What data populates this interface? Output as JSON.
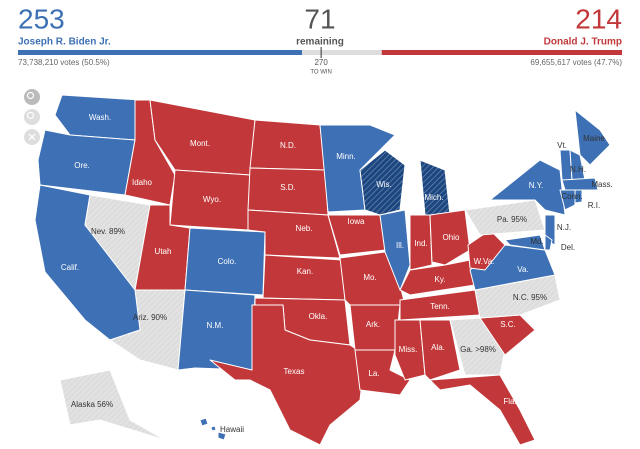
{
  "header": {
    "biden": {
      "electoral_votes": 253,
      "name": "Joseph R. Biden Jr.",
      "popular_votes": "73,738,210 votes (50.5%)",
      "color": "#3d70b5"
    },
    "remaining": {
      "count": 71,
      "label": "remaining",
      "color": "#dddddd"
    },
    "trump": {
      "electoral_votes": 214,
      "name": "Donald J. Trump",
      "popular_votes": "69,655,617 votes (47.7%)",
      "color": "#c2383a"
    },
    "threshold": {
      "value": 270,
      "label": "TO WIN"
    }
  },
  "map": {
    "states": [
      {
        "label": "Wash.",
        "color": "#3d70b5"
      },
      {
        "label": "Ore.",
        "color": "#3d70b5"
      },
      {
        "label": "Calif.",
        "color": "#3d70b5"
      },
      {
        "label": "Nev. 89%",
        "color": "#dddddd",
        "hatched": true
      },
      {
        "label": "Idaho",
        "color": "#c2383a"
      },
      {
        "label": "Mont.",
        "color": "#c2383a"
      },
      {
        "label": "Wyo.",
        "color": "#c2383a"
      },
      {
        "label": "Utah",
        "color": "#c2383a"
      },
      {
        "label": "Colo.",
        "color": "#3d70b5"
      },
      {
        "label": "Ariz. 90%",
        "color": "#dddddd",
        "hatched": true
      },
      {
        "label": "N.M.",
        "color": "#3d70b5"
      },
      {
        "label": "N.D.",
        "color": "#c2383a"
      },
      {
        "label": "S.D.",
        "color": "#c2383a"
      },
      {
        "label": "Neb.",
        "color": "#c2383a"
      },
      {
        "label": "Kan.",
        "color": "#c2383a"
      },
      {
        "label": "Okla.",
        "color": "#c2383a"
      },
      {
        "label": "Texas",
        "color": "#c2383a"
      },
      {
        "label": "Minn.",
        "color": "#3d70b5"
      },
      {
        "label": "Iowa",
        "color": "#c2383a"
      },
      {
        "label": "Mo.",
        "color": "#c2383a"
      },
      {
        "label": "Ark.",
        "color": "#c2383a"
      },
      {
        "label": "La.",
        "color": "#c2383a"
      },
      {
        "label": "Wis.",
        "color": "#1c4680",
        "hatched": true
      },
      {
        "label": "Ill.",
        "color": "#3d70b5"
      },
      {
        "label": "Mich.",
        "color": "#1c4680",
        "hatched": true
      },
      {
        "label": "Ind.",
        "color": "#c2383a"
      },
      {
        "label": "Ohio",
        "color": "#c2383a"
      },
      {
        "label": "Ky.",
        "color": "#c2383a"
      },
      {
        "label": "Tenn.",
        "color": "#c2383a"
      },
      {
        "label": "Miss.",
        "color": "#c2383a"
      },
      {
        "label": "Ala.",
        "color": "#c2383a"
      },
      {
        "label": "Ga. >98%",
        "color": "#dddddd",
        "hatched": true
      },
      {
        "label": "Fla.",
        "color": "#c2383a"
      },
      {
        "label": "S.C.",
        "color": "#c2383a"
      },
      {
        "label": "N.C. 95%",
        "color": "#dddddd",
        "hatched": true
      },
      {
        "label": "Va.",
        "color": "#3d70b5"
      },
      {
        "label": "W.Va.",
        "color": "#c2383a"
      },
      {
        "label": "Pa. 95%",
        "color": "#dddddd",
        "hatched": true
      },
      {
        "label": "N.Y.",
        "color": "#3d70b5"
      },
      {
        "label": "Maine",
        "color": "#3d70b5"
      },
      {
        "label": "Vt.",
        "color": "#3d70b5"
      },
      {
        "label": "N.H.",
        "color": "#3d70b5"
      },
      {
        "label": "Mass.",
        "color": "#3d70b5"
      },
      {
        "label": "Conn.",
        "color": "#3d70b5"
      },
      {
        "label": "R.I.",
        "color": "#3d70b5"
      },
      {
        "label": "N.J.",
        "color": "#3d70b5"
      },
      {
        "label": "Md.",
        "color": "#3d70b5"
      },
      {
        "label": "Del.",
        "color": "#3d70b5"
      },
      {
        "label": "Alaska 56%",
        "color": "#dddddd",
        "hatched": true
      },
      {
        "label": "Hawaii",
        "color": "#3d70b5"
      }
    ]
  }
}
